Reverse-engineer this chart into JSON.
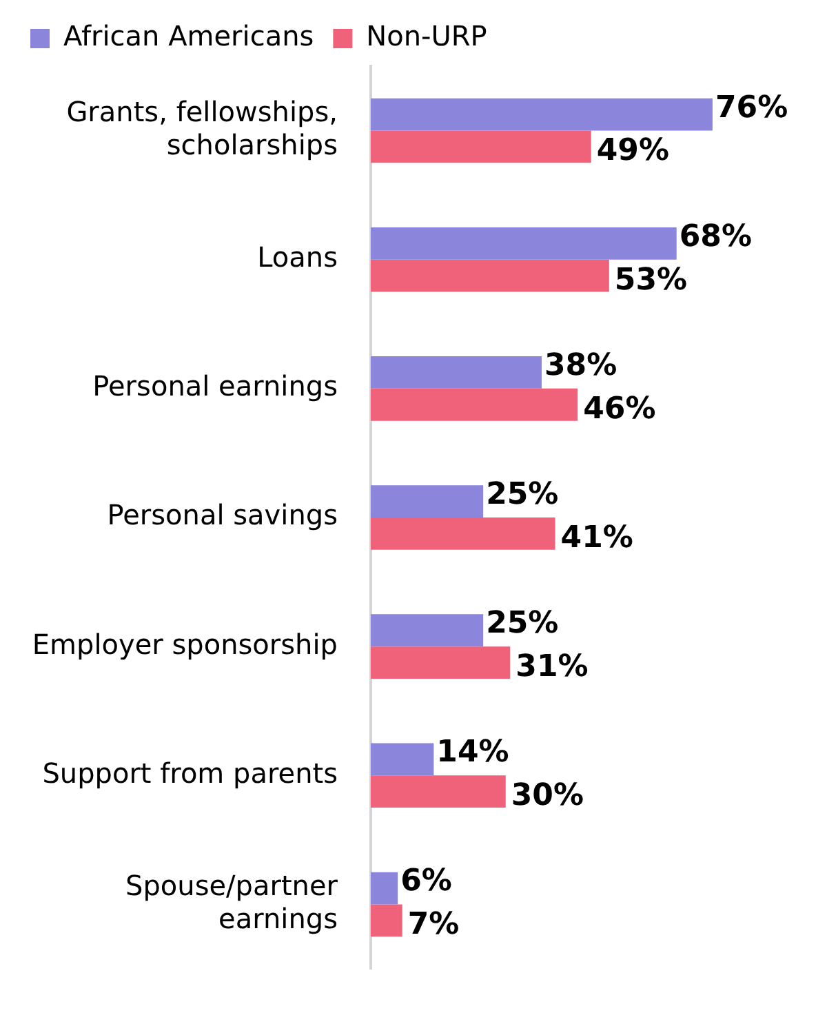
{
  "chart_data": {
    "type": "bar",
    "orientation": "horizontal",
    "categories": [
      "Grants, fellowships,\nscholarships",
      "Loans",
      "Personal earnings",
      "Personal savings",
      "Employer sponsorship",
      "Support from parents",
      "Spouse/partner\nearnings"
    ],
    "series": [
      {
        "name": "African Americans",
        "color": "#8b85dc",
        "values": [
          76,
          68,
          38,
          25,
          25,
          14,
          6
        ],
        "value_labels": [
          "76%",
          "68%",
          "38%",
          "25%",
          "25%",
          "14%",
          "6%"
        ]
      },
      {
        "name": "Non-URP",
        "color": "#ef627a",
        "values": [
          49,
          53,
          46,
          41,
          31,
          30,
          7
        ],
        "value_labels": [
          "49%",
          "53%",
          "46%",
          "41%",
          "31%",
          "30%",
          "7%"
        ]
      }
    ],
    "tick_labels": "y",
    "legend": "top left"
  }
}
